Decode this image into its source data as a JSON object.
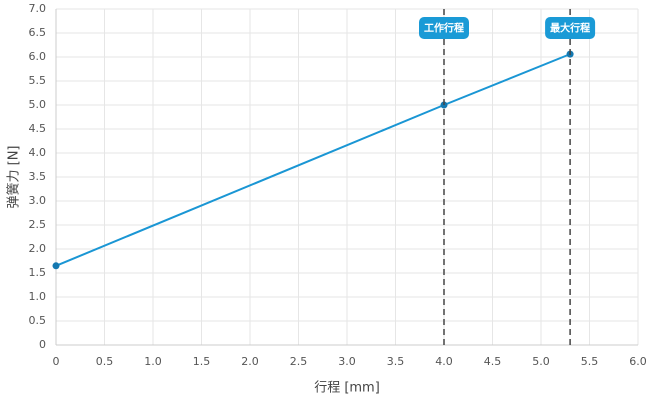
{
  "chart_data": {
    "type": "line",
    "x_label": "行程 [mm]",
    "y_label": "弹簧力 [N]",
    "x": [
      0,
      4.0,
      5.3
    ],
    "series": [
      {
        "color": "#1a96d4",
        "values": [
          1.65,
          5.0,
          6.06
        ]
      }
    ],
    "xlim": [
      0,
      6
    ],
    "ylim": [
      0,
      7
    ],
    "xticks": [
      0,
      0.5,
      {
        "value": 1,
        "label": "1.0"
      },
      1.5,
      {
        "value": 2,
        "label": "2.0"
      },
      2.5,
      {
        "value": 3,
        "label": "3.0"
      },
      3.5,
      {
        "value": 4,
        "label": "4.0"
      },
      4.5,
      {
        "value": 5,
        "label": "5.0"
      },
      5.5,
      {
        "value": 6,
        "label": "6.0"
      }
    ],
    "yticks": [
      0,
      0.5,
      {
        "value": 1,
        "label": "1.0"
      },
      1.5,
      {
        "value": 2,
        "label": "2.0"
      },
      2.5,
      {
        "value": 3,
        "label": "3.0"
      },
      3.5,
      {
        "value": 4,
        "label": "4.0"
      },
      4.5,
      {
        "value": 5,
        "label": "5.0"
      },
      5.5,
      {
        "value": 6,
        "label": "6.0"
      },
      6.5,
      {
        "value": 7,
        "label": "7.0"
      }
    ],
    "grid": true,
    "annotations": [
      {
        "x": 4.0,
        "label": "工作行程"
      },
      {
        "x": 5.3,
        "label": "最大行程"
      }
    ]
  }
}
